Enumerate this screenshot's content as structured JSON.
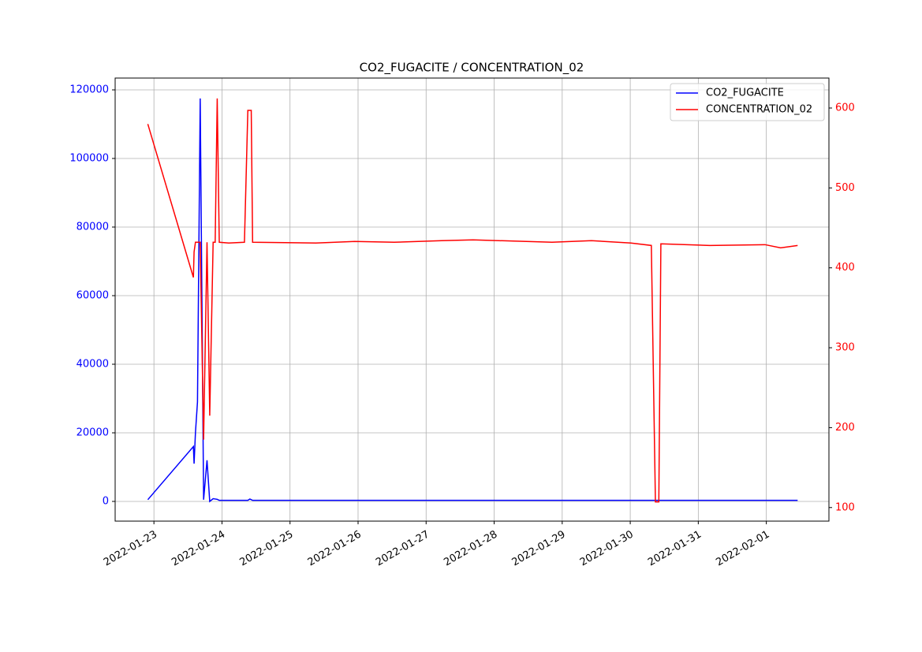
{
  "chart_data": {
    "type": "line",
    "title": "CO2_FUGACITE / CONCENTRATION_02",
    "x": [
      19014.91,
      19015.58,
      19015.59,
      19015.61,
      19015.64,
      19015.68,
      19015.73,
      19015.78,
      19015.82,
      19015.87,
      19015.9,
      19015.93,
      19015.96,
      19016.1,
      19016.33,
      19016.38,
      19016.41,
      19016.43,
      19016.45,
      19017.38,
      19017.95,
      19018.53,
      19019.23,
      19019.69,
      19020.85,
      19021.43,
      19022.01,
      19022.31,
      19022.37,
      19022.42,
      19022.45,
      19023.17,
      19023.98,
      19024.21,
      19024.46
    ],
    "series": [
      {
        "name": "CO2_FUGACITE",
        "color": "#0000ff",
        "values": [
          500,
          16000,
          11000,
          20000,
          29000,
          117500,
          500,
          12000,
          0,
          800,
          700,
          600,
          300,
          300,
          300,
          300,
          700,
          500,
          300,
          300,
          300,
          300,
          300,
          300,
          300,
          300,
          300,
          300,
          300,
          300,
          300,
          300,
          300,
          300,
          300
        ]
      },
      {
        "name": "CONCENTRATION_02",
        "color": "#ff0000",
        "axis": "y2",
        "values": [
          580,
          388,
          420,
          432,
          432,
          432,
          185,
          432,
          215,
          432,
          432,
          612,
          432,
          431,
          432,
          597,
          597,
          597,
          432,
          431,
          433,
          432,
          434,
          435,
          432,
          434,
          431,
          428,
          107,
          107,
          430,
          428,
          429,
          425,
          428
        ]
      }
    ],
    "xlim": [
      19014.43,
      19024.92
    ],
    "xticks": [
      {
        "value": 19015,
        "label": "2022-01-23"
      },
      {
        "value": 19016,
        "label": "2022-01-24"
      },
      {
        "value": 19017,
        "label": "2022-01-25"
      },
      {
        "value": 19018,
        "label": "2022-01-26"
      },
      {
        "value": 19019,
        "label": "2022-01-27"
      },
      {
        "value": 19020,
        "label": "2022-01-28"
      },
      {
        "value": 19021,
        "label": "2022-01-29"
      },
      {
        "value": 19022,
        "label": "2022-01-30"
      },
      {
        "value": 19023,
        "label": "2022-01-31"
      },
      {
        "value": 19024,
        "label": "2022-02-01"
      }
    ],
    "ylim": [
      -5750,
      123450
    ],
    "yticks": [
      0,
      20000,
      40000,
      60000,
      80000,
      100000,
      120000
    ],
    "y2lim": [
      83,
      637.5
    ],
    "y2ticks": [
      100,
      200,
      300,
      400,
      500,
      600
    ],
    "grid": true,
    "legend": "upper right"
  }
}
